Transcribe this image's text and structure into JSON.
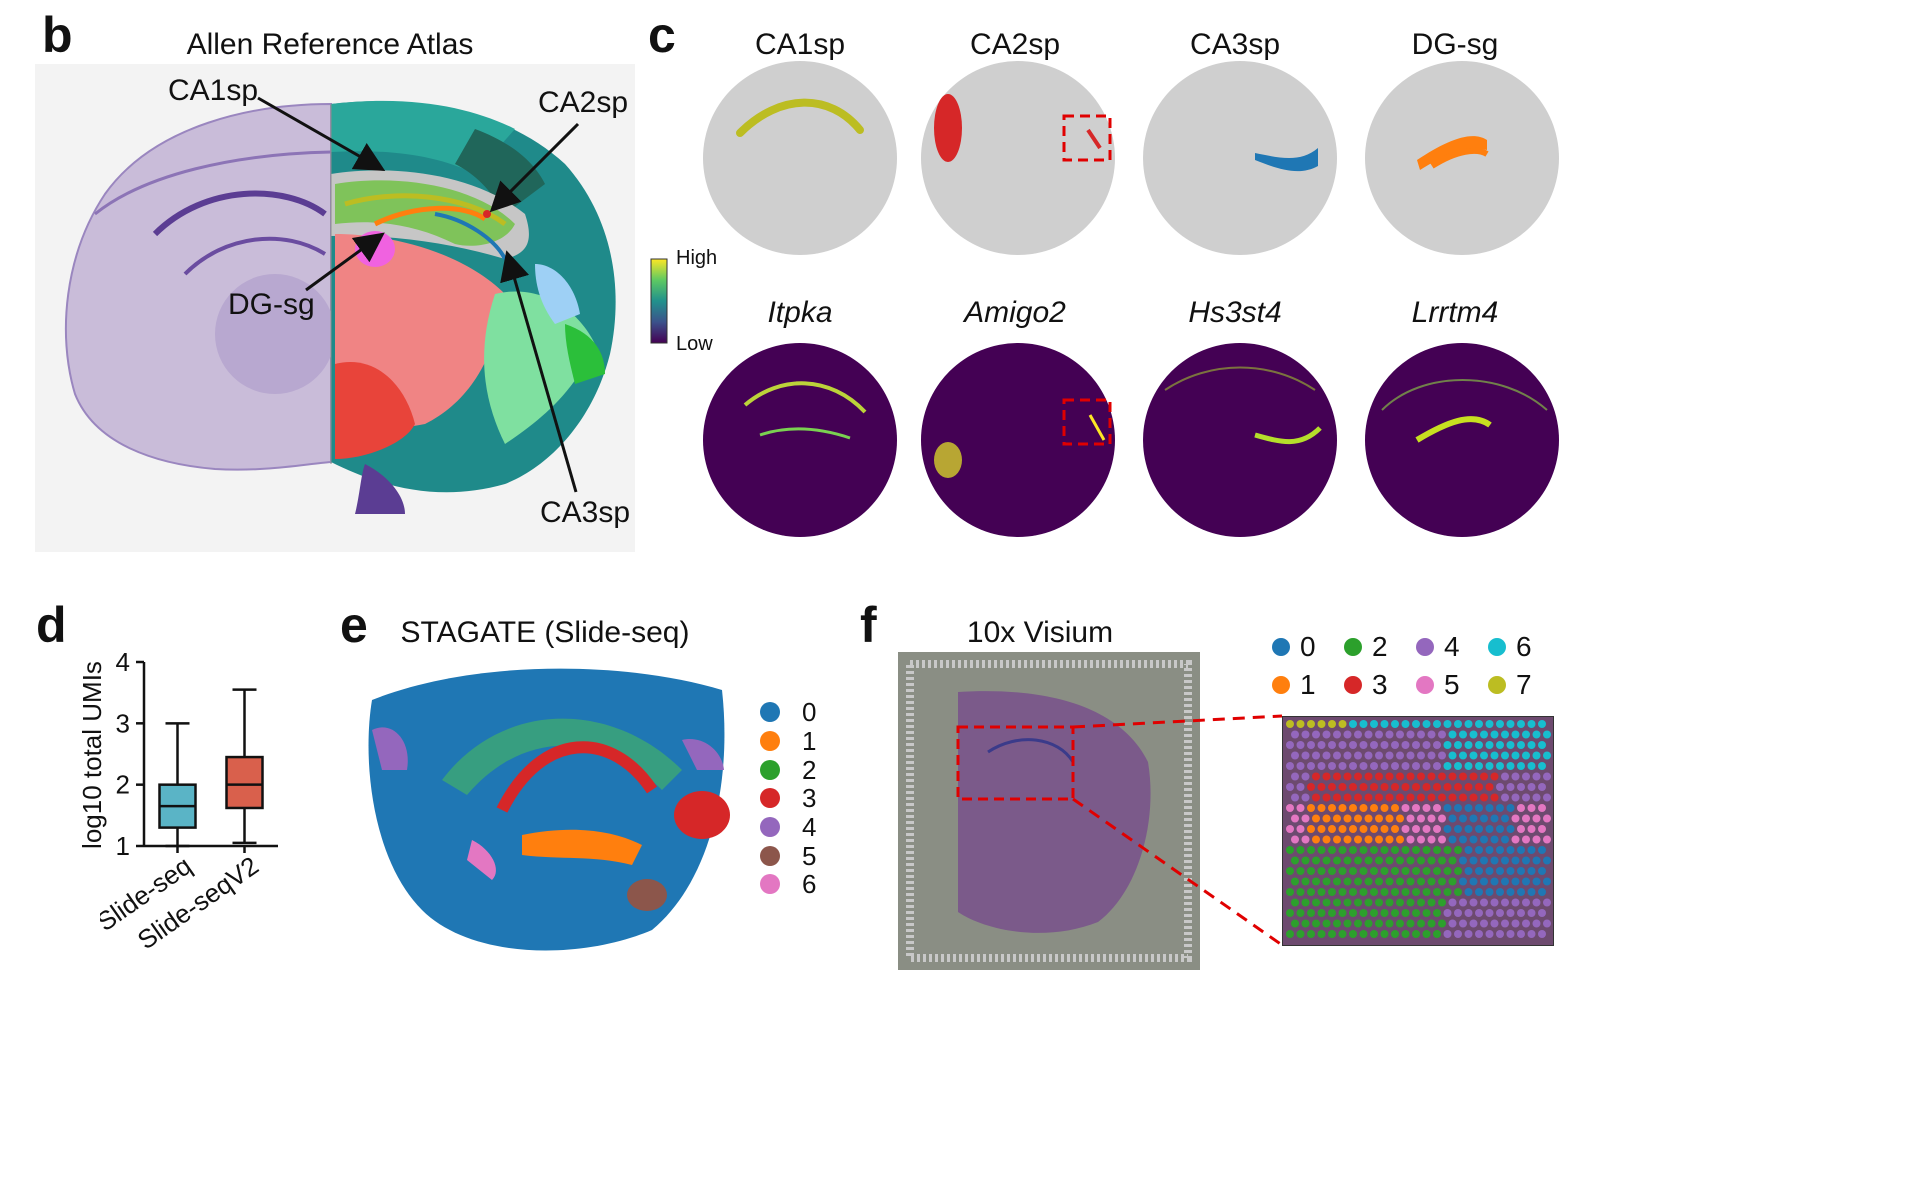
{
  "panels": {
    "b": {
      "label": "b",
      "title": "Allen Reference Atlas",
      "annotations": [
        "CA1sp",
        "CA2sp",
        "DG-sg",
        "CA3sp"
      ]
    },
    "c": {
      "label": "c",
      "region_titles": [
        "CA1sp",
        "CA2sp",
        "CA3sp",
        "DG-sg"
      ],
      "gene_titles": [
        "Itpka",
        "Amigo2",
        "Hs3st4",
        "Lrrtm4"
      ],
      "colorbar": {
        "high": "High",
        "low": "Low"
      },
      "colors": {
        "CA1sp": "#bcbd22",
        "CA2sp": "#d62728",
        "CA3sp": "#1f77b4",
        "DG-sg": "#ff7f0e",
        "background": "#cfcfcf",
        "expr_low": "#440154",
        "expr_high": "#fde725"
      }
    },
    "d": {
      "label": "d"
    },
    "e": {
      "label": "e",
      "title": "STAGATE (Slide-seq)",
      "legend": [
        "0",
        "1",
        "2",
        "3",
        "4",
        "5",
        "6"
      ],
      "colors": [
        "#1f77b4",
        "#ff7f0e",
        "#2ca02c",
        "#d62728",
        "#9467bd",
        "#8c564b",
        "#e377c2"
      ]
    },
    "f": {
      "label": "f",
      "title": "10x Visium",
      "legend": [
        "0",
        "2",
        "4",
        "6",
        "1",
        "3",
        "5",
        "7"
      ],
      "colors": [
        "#1f77b4",
        "#2ca02c",
        "#9467bd",
        "#17becf",
        "#ff7f0e",
        "#d62728",
        "#e377c2",
        "#bcbd22"
      ]
    }
  },
  "chart_data": {
    "type": "box",
    "ylabel": "log10 total UMIs",
    "ylim": [
      1,
      4
    ],
    "yticks": [
      "1",
      "2",
      "3",
      "4"
    ],
    "categories": [
      "Slide-seq",
      "Slide-seqV2"
    ],
    "boxes": [
      {
        "name": "Slide-seq",
        "min": 1.0,
        "q1": 1.3,
        "median": 1.65,
        "q3": 2.0,
        "max": 3.0,
        "color": "#5ab4c6"
      },
      {
        "name": "Slide-seqV2",
        "min": 1.05,
        "q1": 1.62,
        "median": 2.0,
        "q3": 2.45,
        "max": 3.55,
        "color": "#d9604c"
      }
    ]
  }
}
